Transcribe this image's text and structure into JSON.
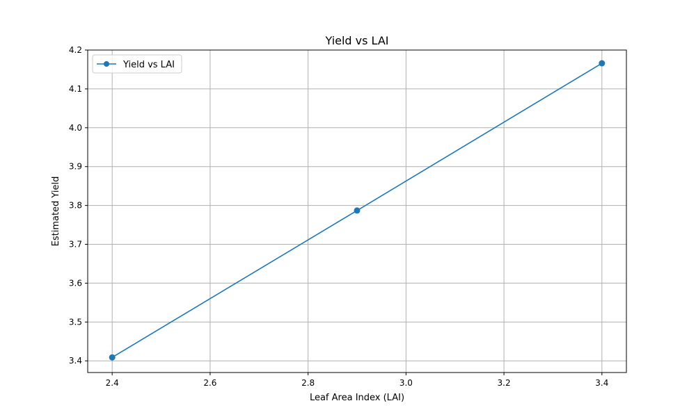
{
  "chart_data": {
    "type": "line",
    "title": "Yield vs LAI",
    "xlabel": "Leaf Area Index (LAI)",
    "ylabel": "Estimated Yield",
    "xlim": [
      2.35,
      3.45
    ],
    "ylim": [
      3.37,
      4.2
    ],
    "x_ticks": [
      2.4,
      2.6,
      2.8,
      3.0,
      3.2,
      3.4
    ],
    "x_tick_labels": [
      "2.4",
      "2.6",
      "2.8",
      "3.0",
      "3.2",
      "3.4"
    ],
    "y_ticks": [
      3.4,
      3.5,
      3.6,
      3.7,
      3.8,
      3.9,
      4.0,
      4.1,
      4.2
    ],
    "y_tick_labels": [
      "3.4",
      "3.5",
      "3.6",
      "3.7",
      "3.8",
      "3.9",
      "4.0",
      "4.1",
      "4.2"
    ],
    "grid": true,
    "legend_placement": "top-left",
    "series": [
      {
        "name": "Yield vs LAI",
        "color": "#1f77b4",
        "marker": "circle",
        "x": [
          2.4,
          2.9,
          3.4
        ],
        "y": [
          3.409,
          3.787,
          4.166
        ]
      }
    ]
  }
}
